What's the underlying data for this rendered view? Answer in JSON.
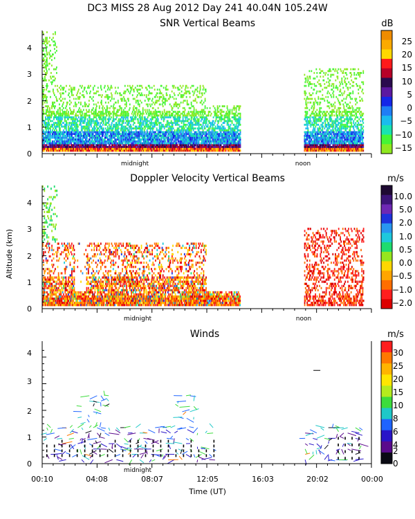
{
  "figure": {
    "title": "DC3 MISS  28 Aug 2012 Day 241 40.04N 105.24W",
    "xlabel": "Time (UT)",
    "ylabel": "Altitude (km)"
  },
  "chart_data": [
    {
      "type": "heatmap",
      "title": "SNR Vertical Beams",
      "colorbar_unit": "dB",
      "colorbar_ticks": [
        "25",
        "20",
        "15",
        "10",
        "5",
        "0",
        "−5",
        "−10",
        "−15"
      ],
      "colorbar_colors": [
        "#f08c00",
        "#fcaa00",
        "#ffd800",
        "#ff1a1a",
        "#b80028",
        "#2a0b4e",
        "#5c18a0",
        "#1525e8",
        "#1f7ef5",
        "#1abcee",
        "#19e3b0",
        "#45f535",
        "#8fe81f"
      ],
      "yticks": [
        "0",
        "1",
        "2",
        "3",
        "4"
      ],
      "ylim": [
        0,
        4.7
      ],
      "xlim_hours": [
        0.1667,
        24
      ],
      "markers": [
        "midnight",
        "noon"
      ],
      "data_gap_hours": [
        14.5,
        19.1
      ],
      "sample_max_altitude_km": 2.6
    },
    {
      "type": "heatmap",
      "title": "Doppler Velocity Vertical Beams",
      "colorbar_unit": "m/s",
      "colorbar_ticks": [
        "10.0",
        "5.0",
        "2.0",
        "1.0",
        "0.5",
        "0.0",
        "−0.5",
        "−1.0",
        "−2.0"
      ],
      "colorbar_colors": [
        "#1e0a32",
        "#3c1478",
        "#6e28b4",
        "#1e32dc",
        "#2896f0",
        "#1ec8dc",
        "#1edc6e",
        "#96e61e",
        "#ffd700",
        "#ffa500",
        "#ff6e00",
        "#ff1e1e",
        "#dc0000"
      ],
      "yticks": [
        "0",
        "1",
        "2",
        "3",
        "4"
      ],
      "ylim": [
        0,
        4.7
      ],
      "xlim_hours": [
        0.1667,
        24
      ],
      "markers": [
        "midnight",
        "noon"
      ],
      "data_gap_hours": [
        14.5,
        19.1
      ],
      "sample_max_altitude_km": 2.5
    },
    {
      "type": "scatter",
      "title": "Winds",
      "colorbar_unit": "m/s",
      "colorbar_ticks": [
        "30",
        "25",
        "20",
        "15",
        "10",
        "8",
        "6",
        "4",
        "2",
        "0"
      ],
      "colorbar_colors": [
        "#ff1e1e",
        "#ff7800",
        "#ffb400",
        "#ffe600",
        "#b4eb1e",
        "#3cdc3c",
        "#1ec8c8",
        "#1e64ff",
        "#2814c8",
        "#5a0a8c",
        "#0a0a14"
      ],
      "yticks": [
        "0",
        "1",
        "2",
        "3",
        "4"
      ],
      "ylim": [
        0,
        4.4
      ],
      "xticks": [
        "00:10",
        "04:08",
        "08:07",
        "12:05",
        "16:03",
        "20:02",
        "00:00"
      ],
      "xlim_hours": [
        0.1667,
        24
      ],
      "markers": [
        "midnight"
      ],
      "sample_max_altitude_km": 2.6
    }
  ]
}
